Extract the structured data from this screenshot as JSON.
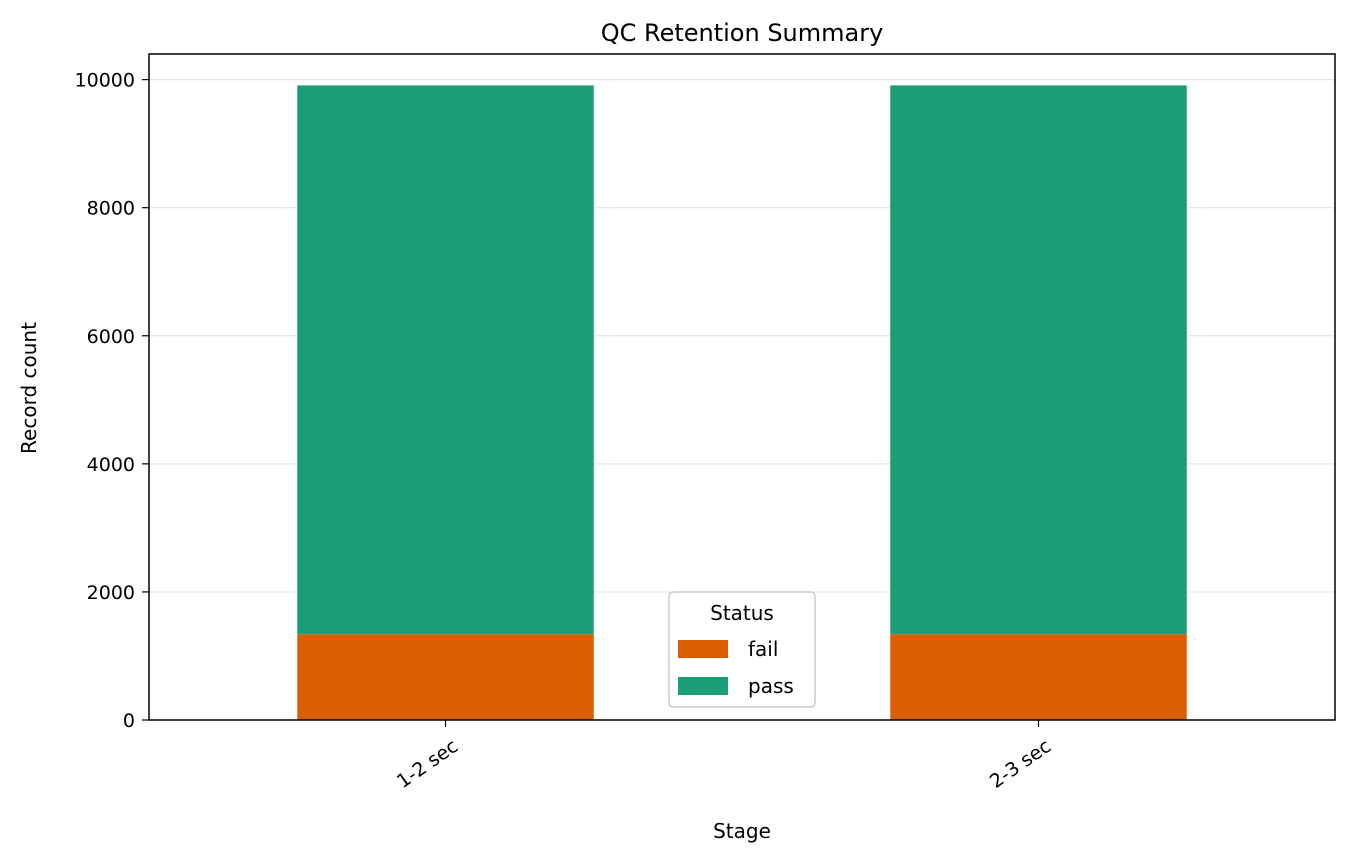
{
  "chart_data": {
    "type": "bar",
    "stacked": true,
    "title": "QC Retention Summary",
    "xlabel": "Stage",
    "ylabel": "Record count",
    "categories": [
      "1-2 sec",
      "2-3 sec"
    ],
    "series": [
      {
        "name": "fail",
        "values": [
          1340,
          1340
        ],
        "color": "#d95f02"
      },
      {
        "name": "pass",
        "values": [
          8570,
          8570
        ],
        "color": "#1b9e77"
      }
    ],
    "ylim": [
      0,
      10400
    ],
    "yticks": [
      0,
      2000,
      4000,
      6000,
      8000,
      10000
    ],
    "grid": "y",
    "legend": {
      "title": "Status",
      "position": "bottom-center"
    },
    "xtick_rotation": -35
  }
}
